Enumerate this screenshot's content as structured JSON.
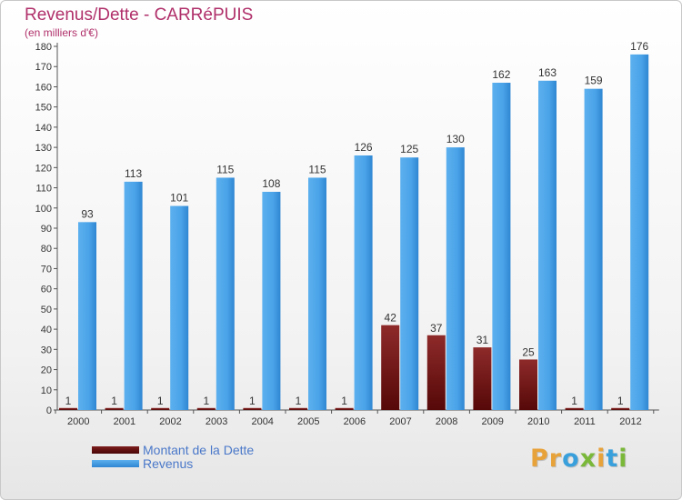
{
  "header": {
    "title": "Revenus/Dette - CARRéPUIS",
    "subtitle": "(en milliers d'€)"
  },
  "logo": {
    "text": "Proxiti"
  },
  "colors": {
    "title": "#b0306a",
    "dette": "#6b1010",
    "revenus": "#3f97e0",
    "legend_text": "#4a78c9"
  },
  "chart_data": {
    "type": "bar",
    "title": "Revenus/Dette - CARRéPUIS",
    "subtitle": "(en milliers d'€)",
    "categories": [
      "2000",
      "2001",
      "2002",
      "2003",
      "2004",
      "2005",
      "2006",
      "2007",
      "2008",
      "2009",
      "2010",
      "2011",
      "2012"
    ],
    "series": [
      {
        "name": "Montant de la Dette",
        "values": [
          1,
          1,
          1,
          1,
          1,
          1,
          1,
          42,
          37,
          31,
          25,
          1,
          1
        ]
      },
      {
        "name": "Revenus",
        "values": [
          93,
          113,
          101,
          115,
          108,
          115,
          126,
          125,
          130,
          162,
          163,
          159,
          176
        ]
      }
    ],
    "ylim": [
      0,
      180
    ],
    "yticks": [
      0,
      10,
      20,
      30,
      40,
      50,
      60,
      70,
      80,
      90,
      100,
      110,
      120,
      130,
      140,
      150,
      160,
      170,
      180
    ],
    "grid": false,
    "legend_position": "bottom-left"
  }
}
